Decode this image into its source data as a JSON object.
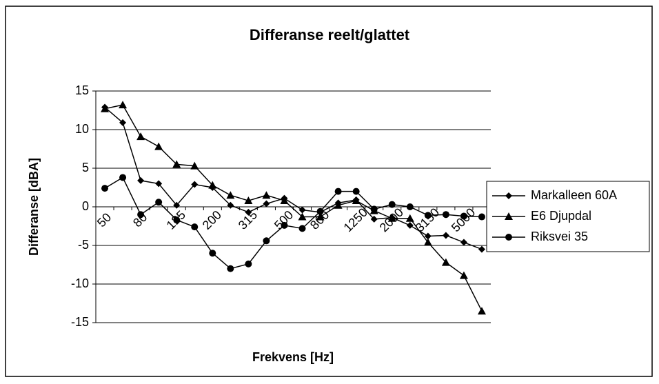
{
  "chart_data": {
    "type": "line",
    "title": "Differanse reelt/glattet",
    "x_label": "Frekvens [Hz]",
    "y_label": "Differanse [dBA]",
    "categories": [
      "50",
      null,
      "80",
      null,
      "125",
      null,
      "200",
      null,
      "315",
      null,
      "500",
      null,
      "800",
      null,
      "1250",
      null,
      "2000",
      null,
      "3150",
      null,
      "5000",
      null
    ],
    "series": [
      {
        "name": "Markalleen 60A",
        "color": "#000000",
        "marker": "diamond",
        "values": [
          12.9,
          10.9,
          3.4,
          3.0,
          0.2,
          2.9,
          2.5,
          0.2,
          -0.7,
          0.4,
          1.1,
          -0.4,
          -0.7,
          0.5,
          0.9,
          -1.6,
          -1.4,
          -2.4,
          -3.8,
          -3.7,
          -4.6,
          -5.5
        ]
      },
      {
        "name": "E6 Djupdal",
        "color": "#000000",
        "marker": "triangle",
        "values": [
          12.7,
          13.2,
          9.1,
          7.8,
          5.5,
          5.3,
          2.8,
          1.5,
          0.8,
          1.5,
          0.8,
          -1.3,
          -1.3,
          0.2,
          0.8,
          -0.5,
          -1.5,
          -1.5,
          -4.6,
          -7.2,
          -8.9,
          -13.5
        ]
      },
      {
        "name": "Riksvei 35",
        "color": "#000000",
        "marker": "circle",
        "values": [
          2.4,
          3.8,
          -1.0,
          0.6,
          -1.7,
          -2.6,
          -6.0,
          -8.0,
          -7.4,
          -4.4,
          -2.4,
          -2.8,
          -0.6,
          2.0,
          2.0,
          -0.3,
          0.3,
          0.0,
          -1.1,
          -1.0,
          -1.2,
          -1.3
        ]
      }
    ],
    "ylim": [
      -15,
      15
    ],
    "yticks": [
      -15,
      -10,
      -5,
      0,
      5,
      10,
      15
    ],
    "grid": true,
    "legend": "right"
  }
}
